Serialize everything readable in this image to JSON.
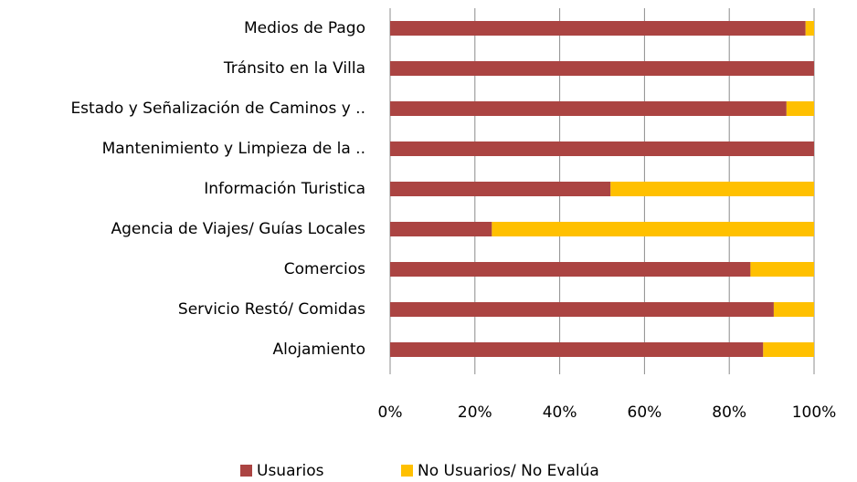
{
  "chart_data": {
    "type": "stacked-bar-horizontal",
    "categories": [
      "Medios de Pago",
      "Tránsito en la Villa",
      "Estado y Señalización de Caminos y ..",
      "Mantenimiento y Limpieza de la ..",
      "Información Turistica",
      "Agencia de Viajes/ Guías Locales",
      "Comercios",
      "Servicio Restó/ Comidas",
      "Alojamiento"
    ],
    "series": [
      {
        "name": "Usuarios",
        "color": "#ab4442",
        "values": [
          98,
          100,
          93.5,
          100,
          52,
          24,
          85,
          90.5,
          88
        ]
      },
      {
        "name": "No Usuarios/ No Evalúa",
        "color": "#ffc000",
        "values": [
          2,
          0,
          6.5,
          0,
          48,
          76,
          15,
          9.5,
          12
        ]
      }
    ],
    "xlim": [
      0,
      100
    ],
    "xticks": [
      {
        "value": 0,
        "label": "0%"
      },
      {
        "value": 20,
        "label": "20%"
      },
      {
        "value": 40,
        "label": "40%"
      },
      {
        "value": 60,
        "label": "60%"
      },
      {
        "value": 80,
        "label": "80%"
      },
      {
        "value": 100,
        "label": "100%"
      }
    ],
    "grid": true,
    "legend": "bottom"
  }
}
